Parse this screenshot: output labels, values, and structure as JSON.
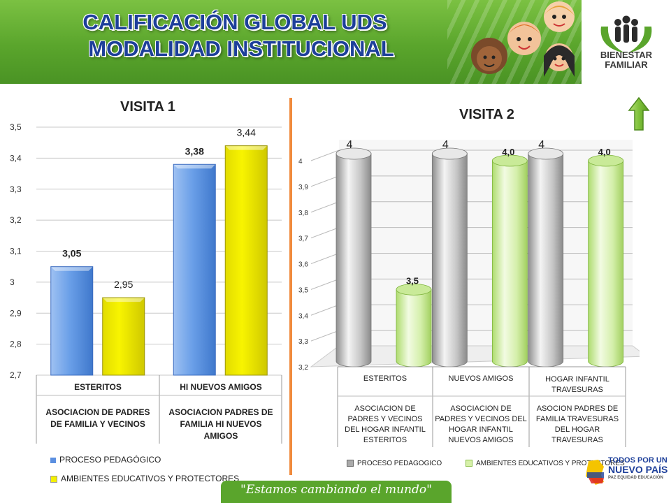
{
  "header": {
    "title_line1": "CALIFICACIÓN GLOBAL UDS",
    "title_line2": "MODALIDAD INSTITUCIONAL",
    "logo_line1": "BIENESTAR",
    "logo_line2": "FAMILIAR"
  },
  "footer": {
    "slogan": "\"Estamos cambiando el mundo\"",
    "gov_line1": "TODOS POR UN",
    "gov_line2": "NUEVO PAÍS",
    "gov_line3": "PAZ EQUIDAD EDUCACIÓN"
  },
  "colors": {
    "banner": "#5aa52c",
    "title": "#1d3f9a",
    "divider": "#f08a3c",
    "v1_series1": "#5b8fe0",
    "v1_series2": "#f4f000",
    "v2_series1": "#bdbdbd",
    "v2_series2": "#d6f0a8"
  },
  "chart_data": [
    {
      "type": "bar",
      "title": "VISITA 1",
      "categories": [
        {
          "name": "ESTERITOS",
          "detail": "ASOCIACION DE PADRES DE FAMILIA Y VECINOS"
        },
        {
          "name": "HI NUEVOS AMIGOS",
          "detail": "ASOCIACION PADRES DE FAMILIA HI NUEVOS AMIGOS"
        }
      ],
      "series": [
        {
          "name": "PROCESO PEDAGÓGICO",
          "values": [
            3.05,
            3.38
          ],
          "labels": [
            "3,05",
            "3,38"
          ]
        },
        {
          "name": "AMBIENTES EDUCATIVOS Y PROTECTORES",
          "values": [
            2.95,
            3.44
          ],
          "labels": [
            "2,95",
            "3,44"
          ]
        }
      ],
      "ylim": [
        2.7,
        3.5
      ],
      "yticks": [
        "2,7",
        "2,8",
        "2,9",
        "3",
        "3,1",
        "3,2",
        "3,3",
        "3,4",
        "3,5"
      ],
      "grid": true,
      "legend": "bottom-left"
    },
    {
      "type": "bar",
      "title": "VISITA 2",
      "categories": [
        {
          "name": "ESTERITOS",
          "detail": "ASOCIACION DE PADRES Y VECINOS DEL HOGAR INFANTIL ESTERITOS"
        },
        {
          "name": "NUEVOS AMIGOS",
          "detail": "ASOCIACION DE PADRES Y VECINOS DEL HOGAR INFANTIL NUEVOS AMIGOS"
        },
        {
          "name": "HOGAR INFANTIL TRAVESURAS",
          "detail": "ASOCION PADRES DE FAMILIA TRAVESURAS DEL HOGAR TRAVESURAS"
        }
      ],
      "series": [
        {
          "name": "PROCESO PEDAGOGICO",
          "values": [
            4,
            4,
            4
          ],
          "labels": [
            "4",
            "4",
            "4"
          ]
        },
        {
          "name": "AMBIENTES EDUCATIVOS Y PROTECTORES",
          "values": [
            3.5,
            4.0,
            4.0
          ],
          "labels": [
            "3,5",
            "4,0",
            "4,0"
          ]
        }
      ],
      "ylim": [
        3.2,
        4
      ],
      "yticks": [
        "3,2",
        "3,3",
        "3,4",
        "3,5",
        "3,6",
        "3,7",
        "3,8",
        "3,9",
        "4"
      ],
      "grid": true,
      "legend": "bottom"
    }
  ]
}
